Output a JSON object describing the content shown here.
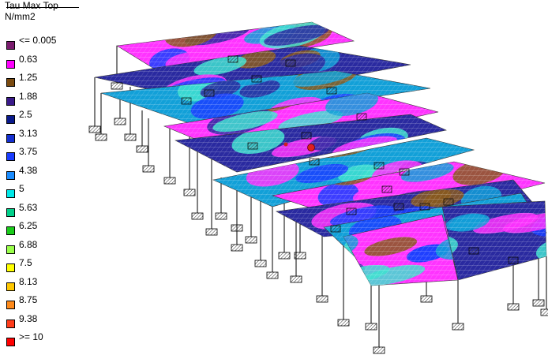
{
  "legend": {
    "title": "Tau Max Top",
    "unit": "N/mm2",
    "entries": [
      {
        "label": "<= 0.005",
        "color": "#7a1c6e"
      },
      {
        "label": "0.63",
        "color": "#ff00ff"
      },
      {
        "label": "1.25",
        "color": "#7a4a10"
      },
      {
        "label": "1.88",
        "color": "#3a1a8a"
      },
      {
        "label": "2.5",
        "color": "#0a1a8c"
      },
      {
        "label": "3.13",
        "color": "#1530d0"
      },
      {
        "label": "3.75",
        "color": "#1a3cff"
      },
      {
        "label": "4.38",
        "color": "#1a8cff"
      },
      {
        "label": "5",
        "color": "#00e8e8"
      },
      {
        "label": "5.63",
        "color": "#00d08a"
      },
      {
        "label": "6.25",
        "color": "#1acc1a"
      },
      {
        "label": "6.88",
        "color": "#9aff4a"
      },
      {
        "label": "7.5",
        "color": "#ffff00"
      },
      {
        "label": "8.13",
        "color": "#ffc800"
      },
      {
        "label": "8.75",
        "color": "#ff8a1a"
      },
      {
        "label": "9.38",
        "color": "#ff3c1a"
      },
      {
        "label": ">= 10",
        "color": "#ff0000"
      }
    ]
  },
  "model": {
    "result_field": "Tau Max Top",
    "base_colors": [
      "#ff33ff",
      "#8a5a1e",
      "#2a2aa0",
      "#1a40ff",
      "#12a0d8",
      "#40e0d0"
    ],
    "mesh_color": "#ffffff",
    "column_color": "#000000",
    "support_color": "#555555"
  }
}
